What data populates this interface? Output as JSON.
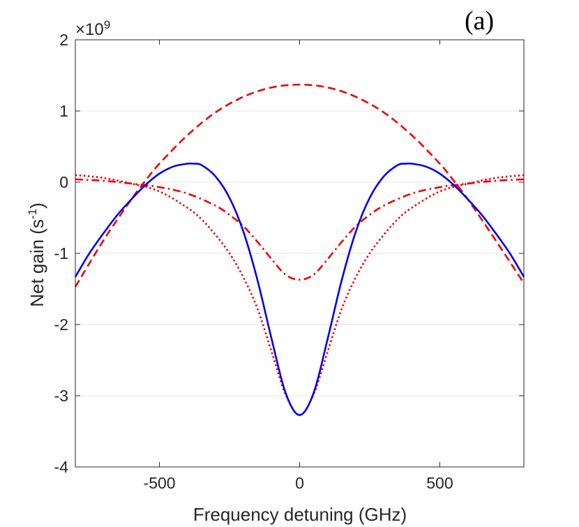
{
  "chart_data": {
    "type": "line",
    "panel_label": "(a)",
    "xlabel": "Frequency detuning (GHz)",
    "ylabel_base": "Net gain (s",
    "ylabel_sup": "-1",
    "ylabel_end": ")",
    "y_exponent_base": "×10",
    "y_exponent_power": "9",
    "xlim": [
      -800,
      800
    ],
    "ylim": [
      -4,
      2
    ],
    "x_scale": 1,
    "y_scale": 1000000000.0,
    "xticks": [
      -500,
      0,
      500
    ],
    "xtick_labels": [
      "-500",
      "0",
      "500"
    ],
    "yticks": [
      2,
      1,
      0,
      -1,
      -2,
      -3,
      -4
    ],
    "ytick_labels": [
      "2",
      "1",
      "0",
      "-1",
      "-2",
      "-3",
      "-4"
    ],
    "grid": "horizontal",
    "series": [
      {
        "style": "dashed",
        "color": "#ee0000",
        "x": [
          -800,
          -700,
          -600,
          -550,
          -500,
          -400,
          -300,
          -200,
          -100,
          0,
          100,
          200,
          300,
          400,
          500,
          550,
          600,
          700,
          800
        ],
        "y": [
          -1.47,
          -0.82,
          -0.24,
          0.02,
          0.26,
          0.66,
          0.98,
          1.2,
          1.33,
          1.37,
          1.33,
          1.2,
          0.98,
          0.66,
          0.26,
          0.02,
          -0.24,
          -0.82,
          -1.42
        ]
      },
      {
        "style": "dashdot",
        "color": "#ee0000",
        "x": [
          -800,
          -700,
          -600,
          -500,
          -400,
          -300,
          -250,
          -200,
          -150,
          -100,
          -50,
          0,
          50,
          100,
          150,
          200,
          250,
          300,
          400,
          500,
          600,
          700,
          800
        ],
        "y": [
          0.04,
          0.02,
          -0.02,
          -0.07,
          -0.16,
          -0.33,
          -0.46,
          -0.62,
          -0.84,
          -1.08,
          -1.3,
          -1.37,
          -1.3,
          -1.08,
          -0.84,
          -0.62,
          -0.46,
          -0.33,
          -0.16,
          -0.07,
          -0.02,
          0.02,
          0.04
        ]
      },
      {
        "style": "dotted",
        "color": "#ee0000",
        "x": [
          -800,
          -700,
          -600,
          -500,
          -400,
          -350,
          -300,
          -250,
          -200,
          -150,
          -100,
          -50,
          0,
          50,
          100,
          150,
          200,
          250,
          300,
          350,
          400,
          500,
          600,
          700,
          800
        ],
        "y": [
          0.1,
          0.06,
          -0.02,
          -0.13,
          -0.36,
          -0.52,
          -0.74,
          -1.0,
          -1.34,
          -1.78,
          -2.38,
          -2.98,
          -3.27,
          -2.98,
          -2.38,
          -1.78,
          -1.34,
          -1.0,
          -0.74,
          -0.52,
          -0.36,
          -0.13,
          -0.02,
          0.06,
          0.1
        ]
      },
      {
        "style": "solid",
        "color": "#0000ee",
        "x": [
          -800,
          -750,
          -700,
          -650,
          -600,
          -550,
          -500,
          -450,
          -400,
          -380,
          -350,
          -300,
          -250,
          -200,
          -150,
          -100,
          -50,
          0,
          50,
          100,
          150,
          200,
          250,
          300,
          350,
          380,
          400,
          450,
          500,
          550,
          600,
          650,
          700,
          750,
          800
        ],
        "y": [
          -1.33,
          -1.0,
          -0.72,
          -0.46,
          -0.24,
          -0.04,
          0.12,
          0.22,
          0.26,
          0.26,
          0.24,
          0.08,
          -0.22,
          -0.7,
          -1.38,
          -2.2,
          -2.96,
          -3.27,
          -2.96,
          -2.2,
          -1.38,
          -0.7,
          -0.22,
          0.08,
          0.24,
          0.26,
          0.26,
          0.22,
          0.12,
          -0.04,
          -0.24,
          -0.46,
          -0.72,
          -1.0,
          -1.33
        ]
      }
    ]
  }
}
